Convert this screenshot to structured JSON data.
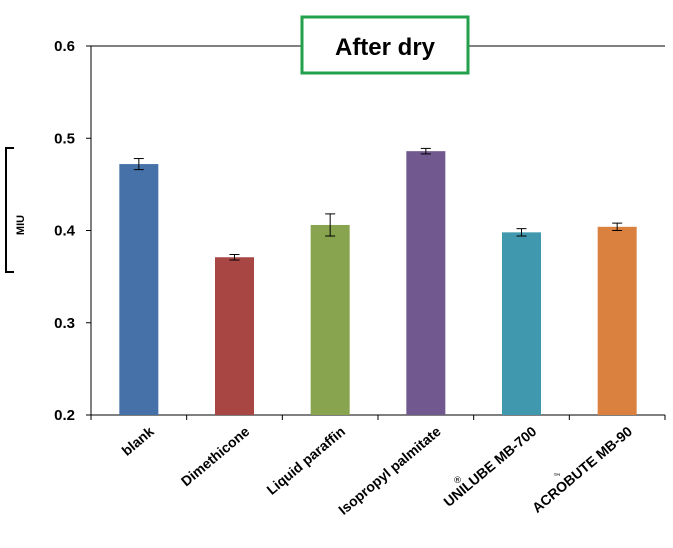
{
  "chart_data": {
    "type": "bar",
    "title": "After dry",
    "ylabel": "MIU",
    "xlabel": "",
    "ylim": [
      0.2,
      0.6
    ],
    "yticks": [
      "0.2",
      "0.3",
      "0.4",
      "0.5",
      "0.6"
    ],
    "grid": false,
    "categories": [
      "blank",
      "Dimethicone",
      "Liquid paraffin",
      "Isopropyl palmitate",
      "UNILUBE MB-700",
      "ACROBUTE MB-90"
    ],
    "category_marks": [
      "",
      "",
      "",
      "",
      "®",
      "™"
    ],
    "values": [
      0.472,
      0.371,
      0.406,
      0.486,
      0.398,
      0.404
    ],
    "errors": [
      0.006,
      0.003,
      0.012,
      0.003,
      0.004,
      0.004
    ],
    "colors": [
      "#4570a8",
      "#a84644",
      "#88a44e",
      "#71588f",
      "#4098ae",
      "#db8140"
    ],
    "title_box_color": "#22a04b"
  }
}
